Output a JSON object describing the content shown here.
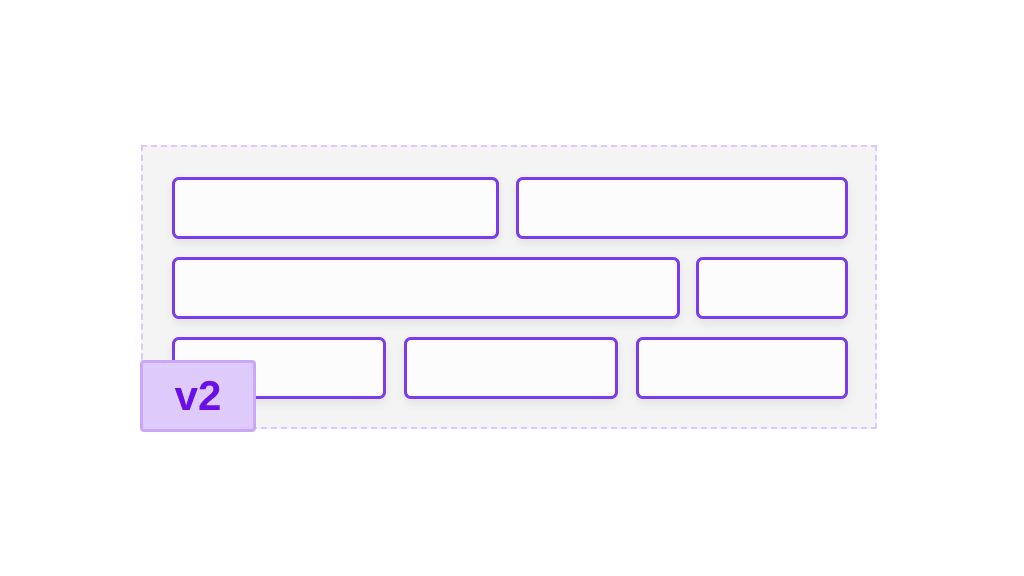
{
  "badge": {
    "label": "v2"
  },
  "colors": {
    "box_border": "#7c3aed",
    "container_border": "#ddc8fb",
    "badge_bg": "#dfcbfb",
    "badge_text": "#6a0fe8"
  },
  "rows": [
    [
      "box-1-1",
      "box-1-2"
    ],
    [
      "box-2-1",
      "box-2-2"
    ],
    [
      "box-3-1",
      "box-3-2",
      "box-3-3"
    ]
  ]
}
